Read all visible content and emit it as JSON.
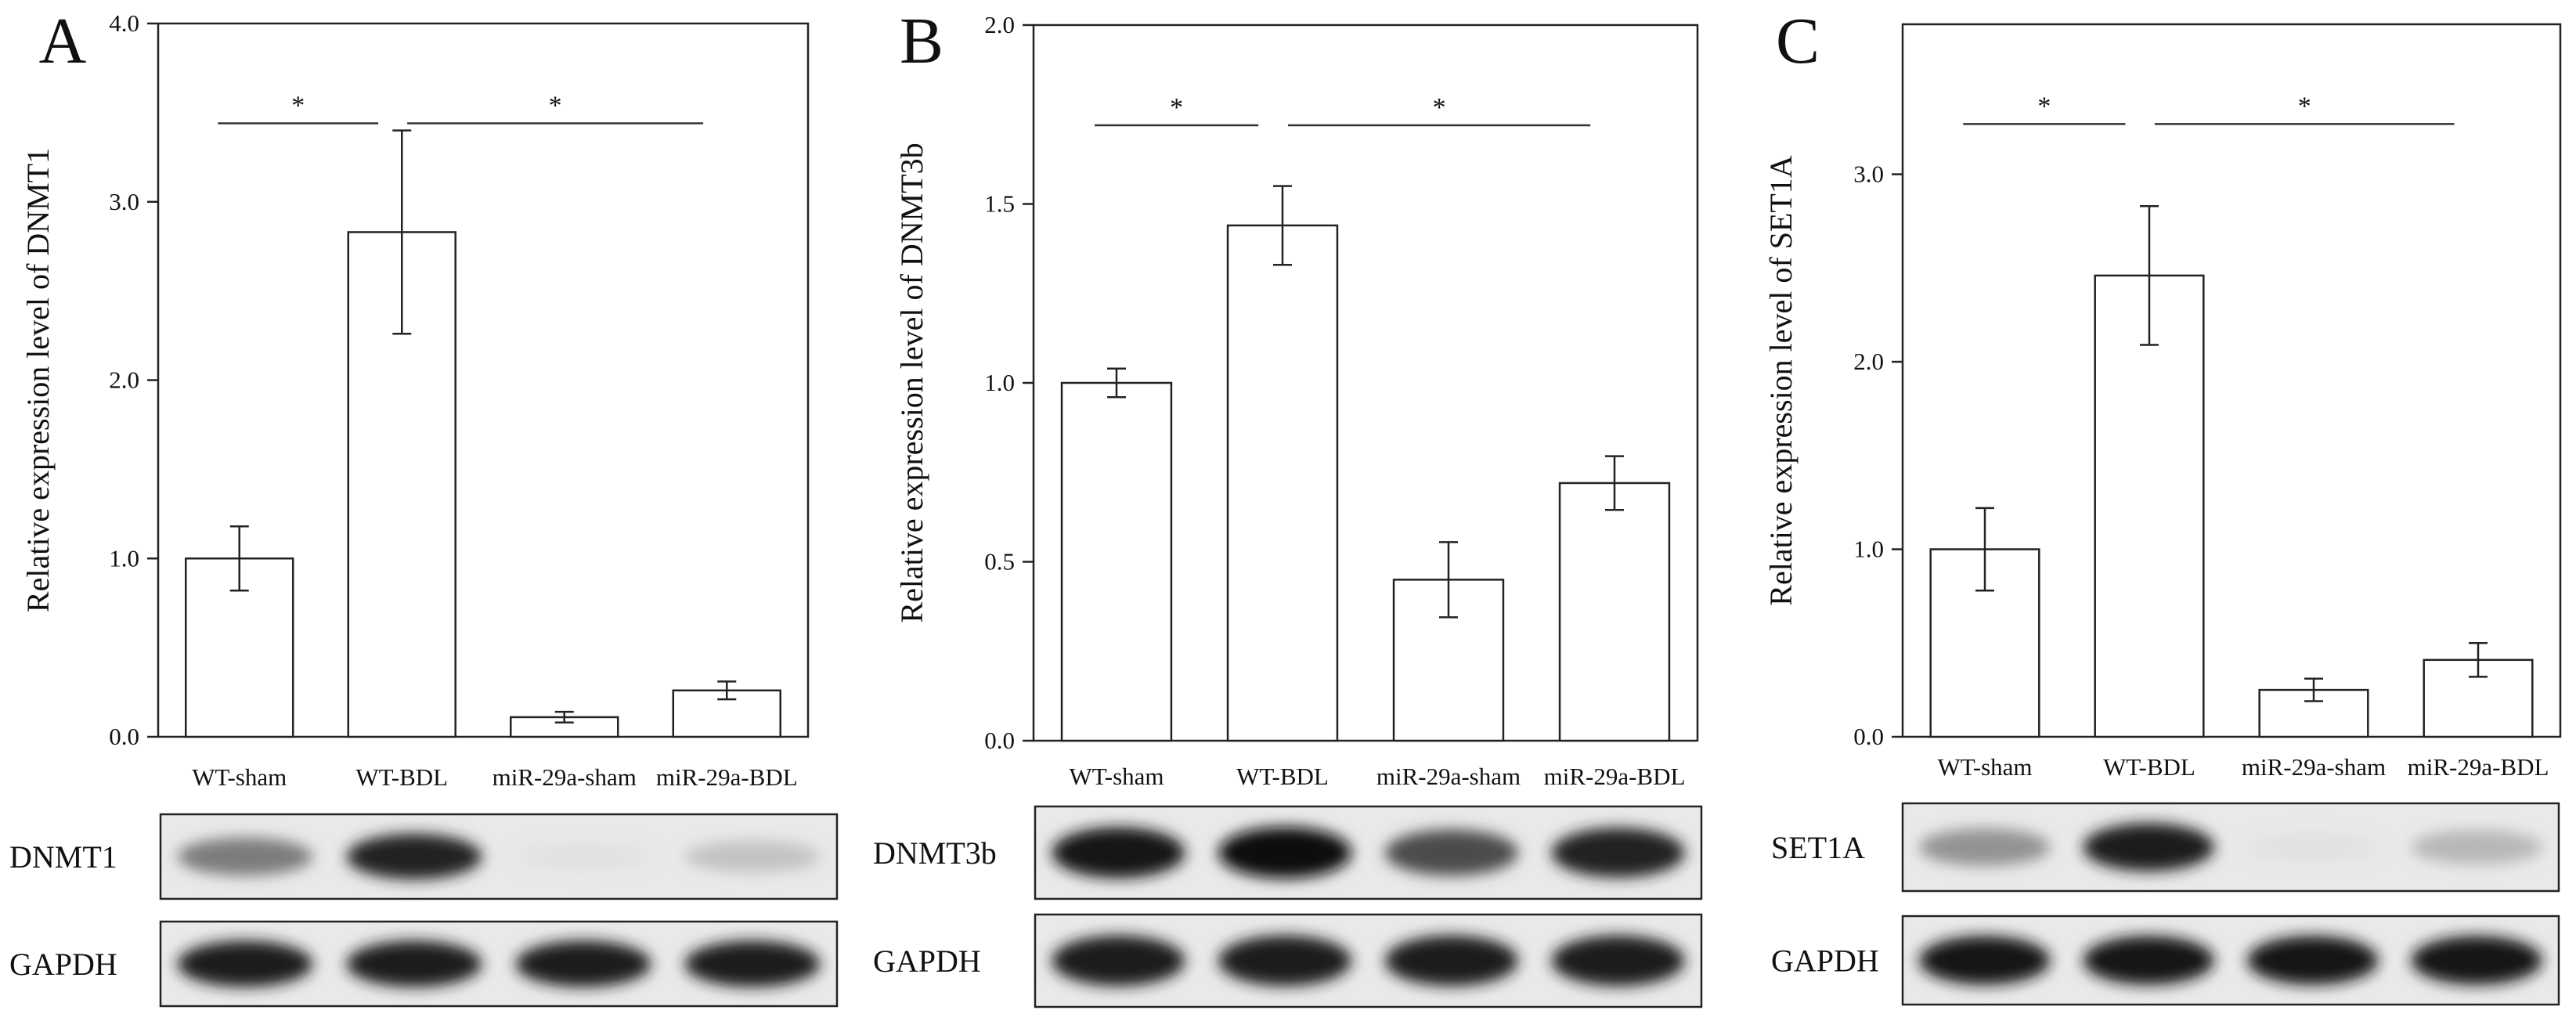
{
  "chart_data": [
    {
      "type": "bar",
      "panel_label": "A",
      "ylabel": "Relative expression level of DNMT1",
      "categories": [
        "WT-sham",
        "WT-BDL",
        "miR-29a-sham",
        "miR-29a-BDL"
      ],
      "values": [
        1.0,
        2.83,
        0.11,
        0.26
      ],
      "errors": [
        0.18,
        0.57,
        0.03,
        0.05
      ],
      "ylim": [
        0,
        4.0
      ],
      "yticks": [
        "0.0",
        "1.0",
        "2.0",
        "3.0",
        "4.0"
      ],
      "ytick_values": [
        0,
        1,
        2,
        3,
        4
      ],
      "sig": [
        {
          "from": 0,
          "to": 1,
          "label": "*"
        },
        {
          "from": 1,
          "to": 3,
          "label": "*"
        }
      ],
      "blots": [
        {
          "label": "DNMT1",
          "intensity": [
            0.55,
            0.92,
            0.12,
            0.25
          ]
        },
        {
          "label": "GAPDH",
          "intensity": [
            0.95,
            0.95,
            0.95,
            0.95
          ]
        }
      ]
    },
    {
      "type": "bar",
      "panel_label": "B",
      "ylabel": "Relative expression level of DNMT3b",
      "categories": [
        "WT-sham",
        "WT-BDL",
        "miR-29a-sham",
        "miR-29a-BDL"
      ],
      "values": [
        1.0,
        1.44,
        0.45,
        0.72
      ],
      "errors": [
        0.04,
        0.11,
        0.105,
        0.075
      ],
      "ylim": [
        0,
        2.0
      ],
      "yticks": [
        "0.0",
        "0.5",
        "1.0",
        "1.5",
        "2.0"
      ],
      "ytick_values": [
        0,
        0.5,
        1.0,
        1.5,
        2.0
      ],
      "sig": [
        {
          "from": 0,
          "to": 1,
          "label": "*"
        },
        {
          "from": 1,
          "to": 3,
          "label": "*"
        }
      ],
      "blots": [
        {
          "label": "DNMT3b",
          "intensity": [
            0.97,
            1.0,
            0.75,
            0.92
          ]
        },
        {
          "label": "GAPDH",
          "intensity": [
            0.95,
            0.95,
            0.95,
            0.95
          ]
        }
      ]
    },
    {
      "type": "bar",
      "panel_label": "C",
      "ylabel": "Relative expression level of SET1A",
      "categories": [
        "WT-sham",
        "WT-BDL",
        "miR-29a-sham",
        "miR-29a-BDL"
      ],
      "values": [
        1.0,
        2.46,
        0.25,
        0.41
      ],
      "errors": [
        0.22,
        0.37,
        0.06,
        0.09
      ],
      "ylim": [
        0,
        3.8
      ],
      "yticks": [
        "0.0",
        "1.0",
        "2.0",
        "3.0"
      ],
      "ytick_values": [
        0,
        1,
        2,
        3
      ],
      "sig": [
        {
          "from": 0,
          "to": 1,
          "label": "*"
        },
        {
          "from": 1,
          "to": 3,
          "label": "*"
        }
      ],
      "blots": [
        {
          "label": "SET1A",
          "intensity": [
            0.45,
            0.95,
            0.12,
            0.3
          ]
        },
        {
          "label": "GAPDH",
          "intensity": [
            0.97,
            0.97,
            0.97,
            0.97
          ]
        }
      ]
    }
  ]
}
